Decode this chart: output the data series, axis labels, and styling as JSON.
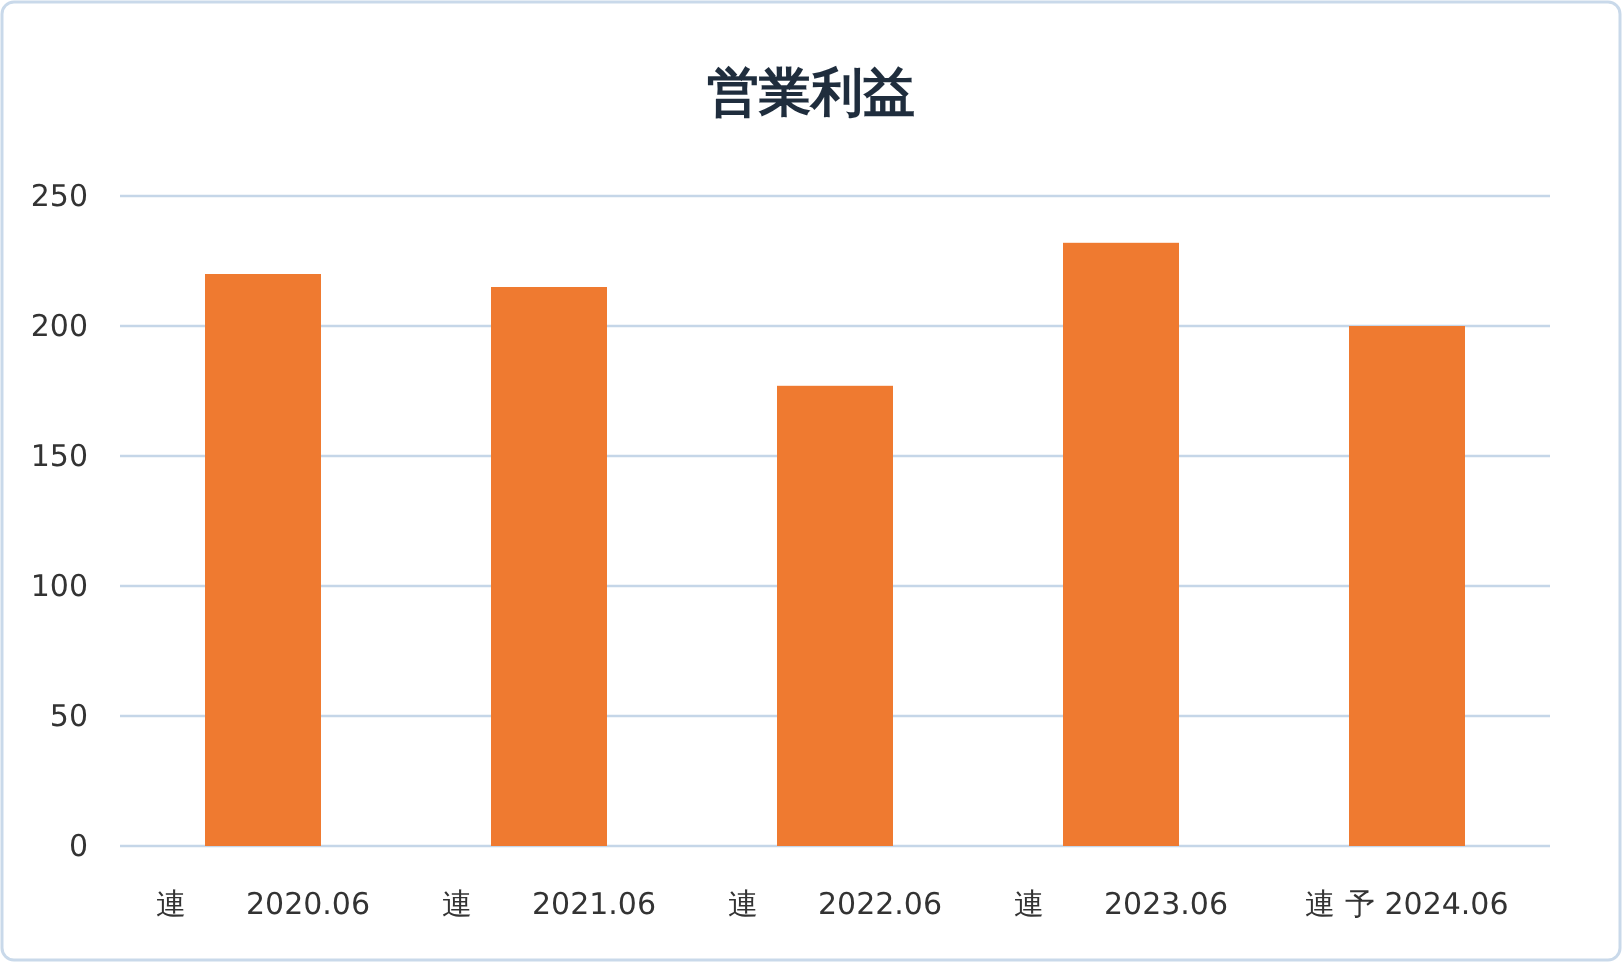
{
  "chart_data": {
    "type": "bar",
    "title": "営業利益",
    "categories": [
      "連　　2020.06",
      "連　　2021.06",
      "連　　2022.06",
      "連　　2023.06",
      "連 予 2024.06"
    ],
    "values": [
      220,
      215,
      177,
      232,
      200
    ],
    "color": "#ef7a30",
    "ylim": [
      0,
      250
    ],
    "yticks": [
      0,
      50,
      100,
      150,
      200,
      250
    ],
    "grid": "y"
  }
}
